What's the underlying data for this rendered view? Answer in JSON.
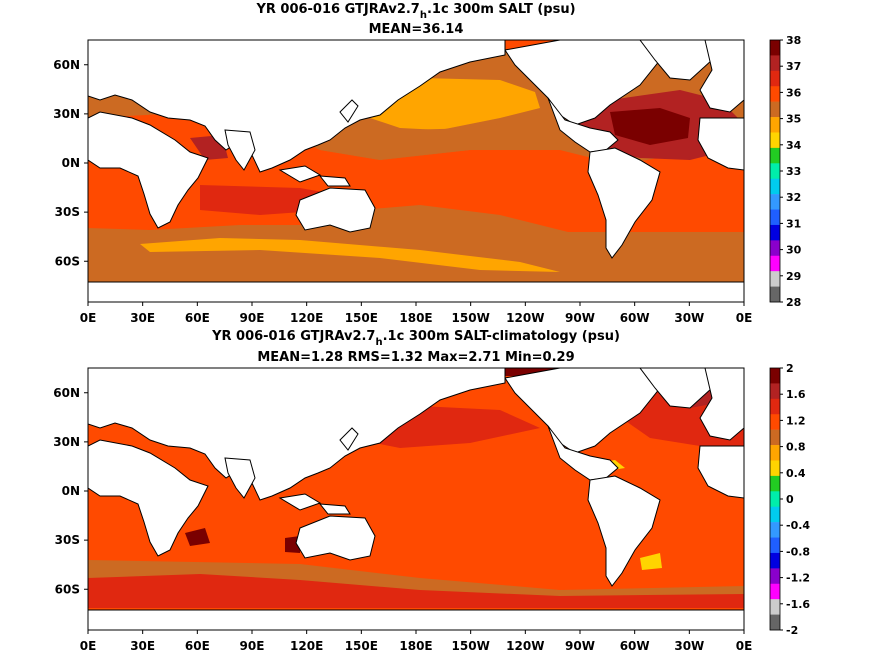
{
  "chart_data": [
    {
      "type": "heatmap",
      "title_parts": [
        "YR 006-016 GTJRAv2.7",
        "h",
        ".1c 300m SALT (psu)"
      ],
      "subtitle": "MEAN=36.14",
      "x_ticks": [
        "0E",
        "30E",
        "60E",
        "90E",
        "120E",
        "150E",
        "180E",
        "150W",
        "120W",
        "90W",
        "60W",
        "30W",
        "0E"
      ],
      "y_ticks": [
        "60N",
        "30N",
        "0N",
        "30S",
        "60S"
      ],
      "colorbar": {
        "levels": [
          "38",
          "37",
          "36",
          "35",
          "34",
          "33",
          "32",
          "31",
          "30",
          "29",
          "28"
        ],
        "colors": [
          "#7a0000",
          "#b22222",
          "#e02810",
          "#ff4a00",
          "#cc6a22",
          "#ffa500",
          "#ffd400",
          "#22cc22",
          "#00eeaa",
          "#00ccee",
          "#3399ff",
          "#1f5fff",
          "#0000e0",
          "#8a00cc",
          "#ff00ff",
          "#cccccc",
          "#666666"
        ]
      },
      "field": {
        "background": "#cc6a22",
        "regions": [
          {
            "name": "north-atlantic-max",
            "color": "#7a0000"
          },
          {
            "name": "north-atlantic-high",
            "color": "#b22222"
          },
          {
            "name": "north-pacific-low",
            "color": "#ffa500"
          },
          {
            "name": "tropics-high",
            "color": "#ff4a00"
          },
          {
            "name": "southern-ocean",
            "color": "#cc6a22"
          }
        ]
      }
    },
    {
      "type": "heatmap",
      "title_parts": [
        "YR 006-016 GTJRAv2.7",
        "h",
        ".1c 300m SALT-climatology (psu)"
      ],
      "subtitle": "MEAN=1.28   RMS=1.32   Max=2.71   Min=0.29",
      "x_ticks": [
        "0E",
        "30E",
        "60E",
        "90E",
        "120E",
        "150E",
        "180E",
        "150W",
        "120W",
        "90W",
        "60W",
        "30W",
        "0E"
      ],
      "y_ticks": [
        "60N",
        "30N",
        "0N",
        "30S",
        "60S"
      ],
      "colorbar": {
        "levels": [
          "2",
          "1.6",
          "1.2",
          "0.8",
          "0.4",
          "0",
          "-0.4",
          "-0.8",
          "-1.2",
          "-1.6",
          "-2"
        ],
        "colors": [
          "#7a0000",
          "#b22222",
          "#e02810",
          "#ff4a00",
          "#cc6a22",
          "#ffa500",
          "#ffd400",
          "#22cc22",
          "#00eeaa",
          "#00ccee",
          "#3399ff",
          "#1f5fff",
          "#0000e0",
          "#8a00cc",
          "#ff00ff",
          "#cccccc",
          "#666666"
        ]
      },
      "field": {
        "background": "#ff4a00",
        "regions": [
          {
            "name": "north-atlantic-max",
            "color": "#e02810"
          },
          {
            "name": "north-pacific-mid",
            "color": "#e02810"
          },
          {
            "name": "southern-ocean-patches",
            "color": "#cc6a22"
          },
          {
            "name": "gulf-anomaly",
            "color": "#ffd400"
          }
        ]
      }
    }
  ]
}
